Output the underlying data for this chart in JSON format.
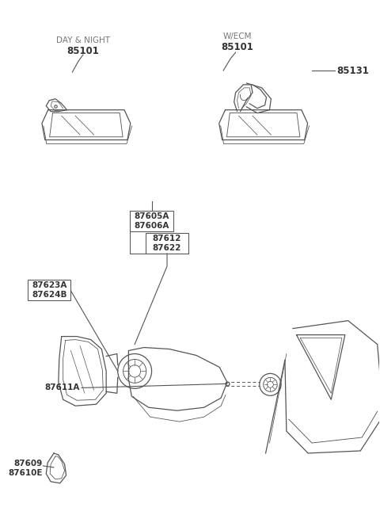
{
  "bg_color": "#ffffff",
  "lc": "#555555",
  "tc": "#777777",
  "pc": "#333333",
  "lw": 0.9,
  "labels": {
    "day_night_title": "DAY & NIGHT",
    "day_night_part": "85101",
    "wecm_title": "W/ECM",
    "wecm_part1": "85101",
    "wecm_part2": "85131",
    "p87605A": "87605A",
    "p87606A": "87606A",
    "p87612": "87612",
    "p87622": "87622",
    "p87623A": "87623A",
    "p87624B": "87624B",
    "p87611A": "87611A",
    "p87609": "87609",
    "p87610E": "87610E"
  }
}
